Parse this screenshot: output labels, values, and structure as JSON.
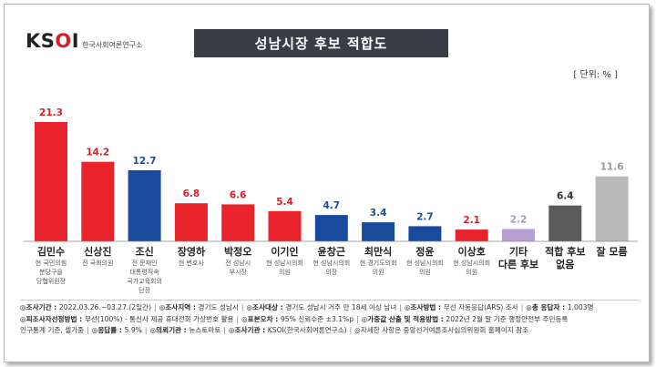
{
  "header": {
    "logo_text": "KSOI",
    "logo_sub": "한국사회여론연구소",
    "title": "성남시장 후보 적합도",
    "unit": "[ 단위: % ]"
  },
  "chart_data": {
    "type": "bar",
    "title": "성남시장 후보 적합도",
    "ylim": [
      0,
      21.3
    ],
    "categories": [
      "김민수",
      "신상진",
      "조신",
      "장영하",
      "박정오",
      "이기인",
      "윤창근",
      "최만식",
      "정윤",
      "이상호",
      "기타 다른 후보",
      "적합 후보 없음",
      "잘 모름"
    ],
    "values": [
      21.3,
      14.2,
      12.7,
      6.8,
      6.6,
      5.4,
      4.7,
      3.4,
      2.7,
      2.1,
      2.2,
      6.4,
      11.6
    ],
    "value_labels": [
      "21.3",
      "14.2",
      "12.7",
      "6.8",
      "6.6",
      "5.4",
      "4.7",
      "3.4",
      "2.7",
      "2.1",
      "2.2",
      "6.4",
      "11.6"
    ],
    "name_lines": [
      [
        "김민수"
      ],
      [
        "신상진"
      ],
      [
        "조신"
      ],
      [
        "장영하"
      ],
      [
        "박정오"
      ],
      [
        "이기인"
      ],
      [
        "윤창근"
      ],
      [
        "최만식"
      ],
      [
        "정윤"
      ],
      [
        "이상호"
      ],
      [
        "기타",
        "다른 후보"
      ],
      [
        "적합 후보",
        "없음"
      ],
      [
        "잘 모름"
      ]
    ],
    "descriptions": [
      [
        "현 국민의힘",
        "분당구을",
        "당협위원장"
      ],
      [
        "전 국회의원"
      ],
      [
        "전 문재인",
        "대통령직속",
        "국가교육회의",
        "단장"
      ],
      [
        "현 변호사"
      ],
      [
        "전 성남시",
        "부시장"
      ],
      [
        "현 성남시의회",
        "의원"
      ],
      [
        "현 성남시의회",
        "의장"
      ],
      [
        "현 경기도의회",
        "의원"
      ],
      [
        "현 성남시의회",
        "의원"
      ],
      [
        "현 성남시의회",
        "의원"
      ],
      [],
      [],
      []
    ],
    "bar_colors": [
      "#e8232b",
      "#e8232b",
      "#1a4a9c",
      "#e8232b",
      "#e8232b",
      "#e8232b",
      "#1a4a9c",
      "#1a4a9c",
      "#1a4a9c",
      "#e8232b",
      "#b79fd4",
      "#5b5b5b",
      "#b9b9b9"
    ],
    "label_colors": [
      "#d81f26",
      "#d81f26",
      "#1a4a9c",
      "#d81f26",
      "#d81f26",
      "#d81f26",
      "#1a4a9c",
      "#1a4a9c",
      "#1a4a9c",
      "#d81f26",
      "#a897c4",
      "#333333",
      "#999999"
    ]
  },
  "footer": {
    "line1": [
      {
        "label": "◎조사기간",
        "value": "2022.03.26.~03.27.(2일간)"
      },
      {
        "label": "◎조사지역",
        "value": "경기도 성남시"
      },
      {
        "label": "◎조사대상",
        "value": "경기도 성남시 거주 만 18세 이상 남녀"
      },
      {
        "label": "◎조사방법",
        "value": "무선 자동응답(ARS) 조사"
      },
      {
        "label": "◎총 응답자",
        "value": "1,003명"
      }
    ],
    "line2": [
      {
        "label": "◎피조사자선정방법",
        "value": "무선(100%) - 통신사 제공 휴대전화 가상번호 활용"
      },
      {
        "label": "◎표본오차",
        "value": "95% 신뢰수준 ±3.1%p"
      },
      {
        "label": "◎가중값 산출 및 적용방법",
        "value": "2022년 2월 말 기준 행정안전부 주민등록"
      }
    ],
    "line3": [
      {
        "label": "",
        "value": "인구통계 기준, 셀가중"
      },
      {
        "label": "◎응답률",
        "value": "5.9%"
      },
      {
        "label": "◎의뢰기관",
        "value": "뉴스토마토"
      },
      {
        "label": "◎조사기관",
        "value": "KSOI(한국사회여론연구소)"
      },
      {
        "label": "",
        "value": "◎자세한 사항은 중앙선거여론조사심의위원회 홈페이지 참조"
      }
    ]
  }
}
